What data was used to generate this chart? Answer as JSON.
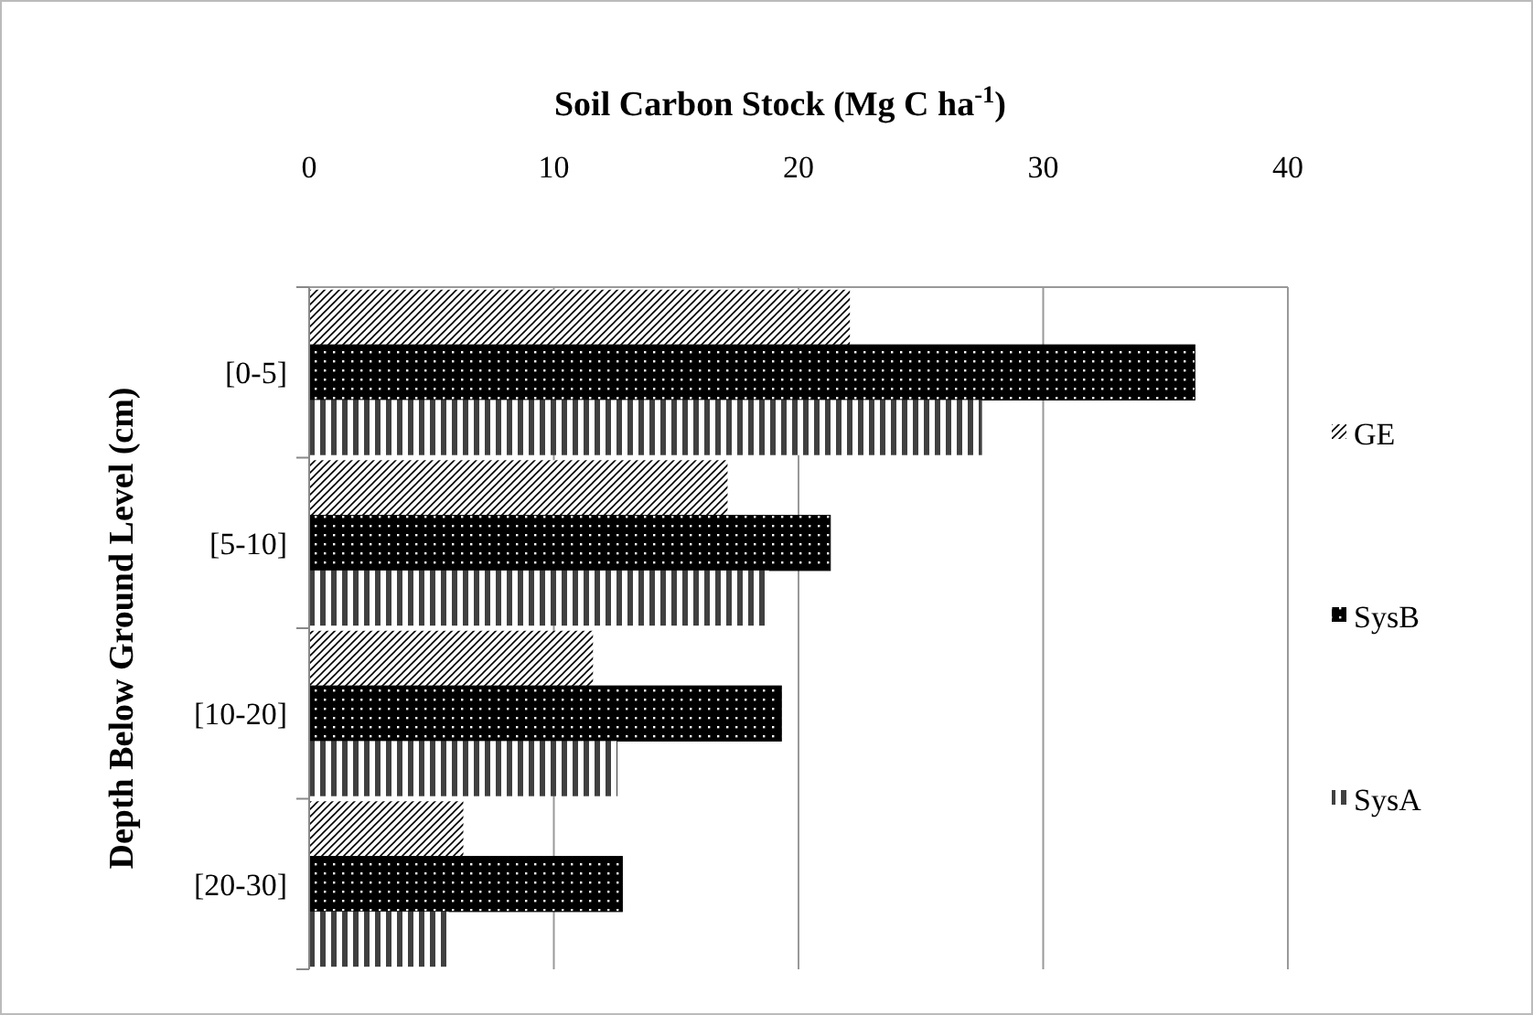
{
  "chart_data": {
    "type": "bar",
    "orientation": "horizontal",
    "xlabel": "Soil Carbon Stock (Mg C ha$^{-1}$)",
    "ylabel": "Depth Below Ground Level (cm)",
    "categories": [
      "[0-5]",
      "[5-10]",
      "[10-20]",
      "[20-30]"
    ],
    "series": [
      {
        "name": "GE",
        "color": "#000000",
        "values": [
          22.1,
          17.1,
          11.6,
          6.3
        ]
      },
      {
        "name": "SysB",
        "color": "#000000",
        "values": [
          36.2,
          21.3,
          19.3,
          12.8
        ]
      },
      {
        "name": "SysA",
        "color": "#404040",
        "values": [
          27.5,
          18.8,
          12.6,
          5.7
        ]
      }
    ],
    "xlim": [
      0,
      40
    ],
    "xticks": [
      0,
      10,
      20,
      30,
      40
    ],
    "grid": "x",
    "legend": "right"
  }
}
